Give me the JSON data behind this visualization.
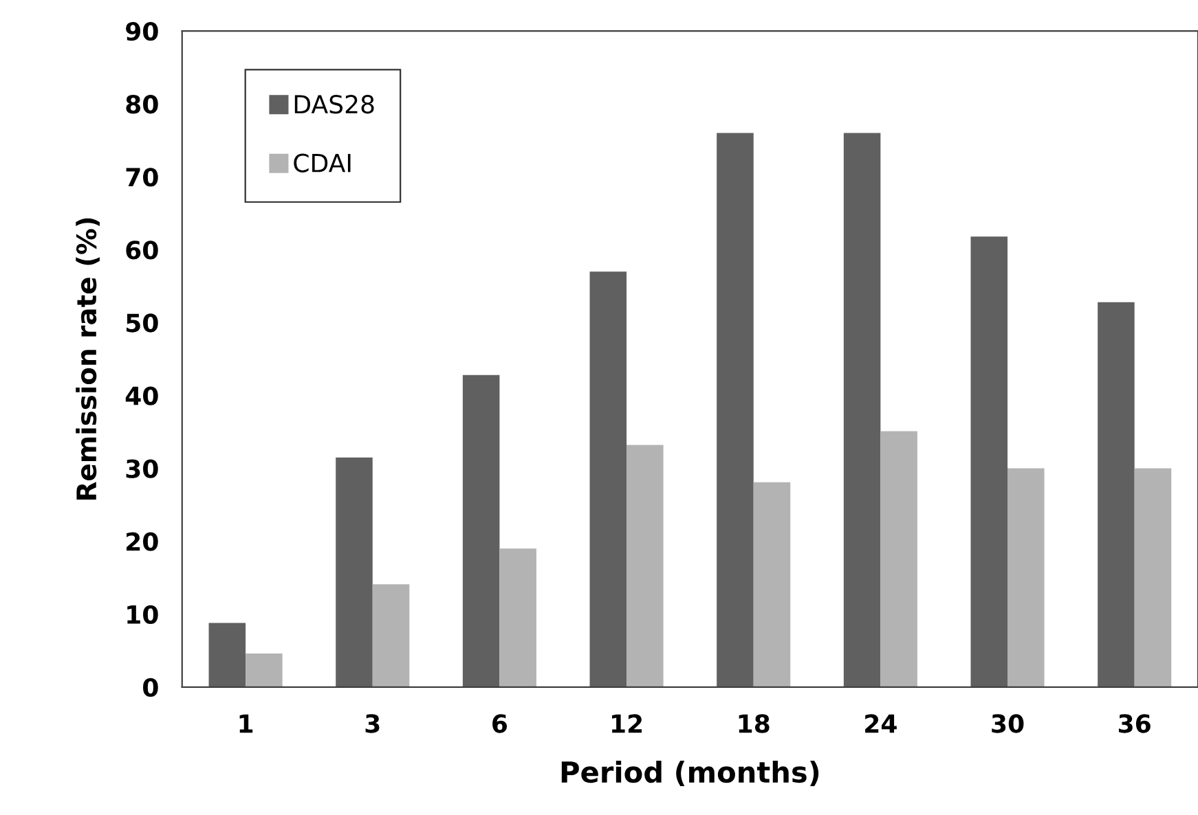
{
  "chart_data": {
    "type": "bar",
    "xlabel": "Period (months)",
    "ylabel": "Remission rate (%)",
    "categories": [
      "1",
      "3",
      "6",
      "12",
      "18",
      "24",
      "30",
      "36"
    ],
    "series": [
      {
        "name": "DAS28",
        "color": "#606060",
        "values": [
          8.8,
          31.5,
          42.8,
          57.0,
          76.0,
          76.0,
          61.8,
          52.8
        ]
      },
      {
        "name": "CDAI",
        "color": "#b3b3b3",
        "values": [
          4.6,
          14.1,
          19.0,
          33.2,
          28.1,
          35.1,
          30.0,
          30.0
        ]
      }
    ],
    "ylim": [
      0,
      90
    ],
    "yticks": [
      0,
      10,
      20,
      30,
      40,
      50,
      60,
      70,
      80,
      90
    ],
    "grid": false,
    "legend": "top left"
  }
}
